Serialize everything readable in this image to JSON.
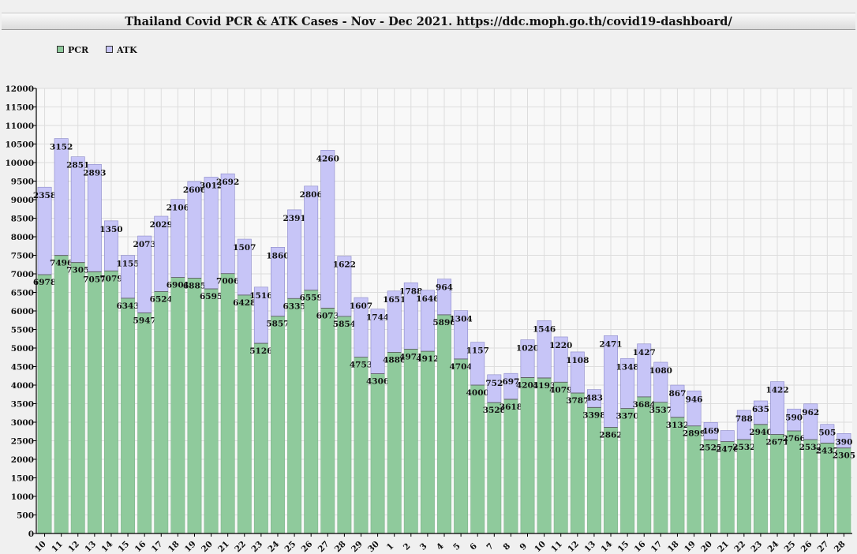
{
  "title": "Thailand Covid PCR & ATK Cases - Nov - Dec 2021. https://ddc.moph.go.th/covid19-dashboard/",
  "colors": {
    "pcr": "#8fca9c",
    "atk": "#c7c5f7",
    "plot_bg": "#f8f8f8",
    "grid": "#dddddd",
    "axis": "#000000"
  },
  "chart_data": {
    "type": "bar",
    "stacked": true,
    "title": "Thailand Covid PCR & ATK Cases - Nov - Dec 2021. https://ddc.moph.go.th/covid19-dashboard/",
    "xlabel": "",
    "ylabel": "",
    "ylim": [
      0,
      12000
    ],
    "ytick_step": 500,
    "grid": true,
    "legend_position": "top-left",
    "categories": [
      "10",
      "11",
      "12",
      "13",
      "14",
      "15",
      "16",
      "17",
      "18",
      "19",
      "20",
      "21",
      "22",
      "23",
      "24",
      "25",
      "26",
      "27",
      "28",
      "29",
      "30",
      "1",
      "2",
      "3",
      "4",
      "5",
      "6",
      "7",
      "8",
      "9",
      "10",
      "11",
      "12",
      "13",
      "14",
      "15",
      "16",
      "17",
      "18",
      "19",
      "20",
      "21",
      "22",
      "23",
      "24",
      "25",
      "26",
      "27",
      "28"
    ],
    "series": [
      {
        "name": "PCR",
        "values": [
          6978,
          7496,
          7305,
          7057,
          7079,
          6343,
          5947,
          6524,
          6901,
          6885,
          6595,
          7006,
          6428,
          5126,
          5857,
          6335,
          6559,
          6073,
          5854,
          4753,
          4306,
          4886,
          4971,
          4912,
          5896,
          4704,
          4000,
          3528,
          3618,
          4203,
          4193,
          4079,
          3787,
          3398,
          2862,
          3370,
          3684,
          3537,
          3132,
          2899,
          2525,
          2476,
          2532,
          2940,
          2671,
          2766,
          2532,
          2437,
          2305
        ],
        "labels": [
          "6978",
          "7496",
          "7305",
          "7057",
          "7079",
          "6343",
          "5947",
          "6524",
          "6901",
          "6885",
          "6595",
          "7006",
          "6428",
          "5126",
          "5857",
          "6335",
          "6559",
          "6073",
          "5854",
          "4753",
          "4306",
          "4886",
          "4971",
          "4912",
          "5896",
          "4704",
          "4000",
          "3528",
          "3618",
          "4203",
          "4193",
          "4079",
          "3787",
          "3398",
          "2862",
          "3370",
          "3684",
          "3537",
          "3132",
          "2899",
          "2525",
          "2476",
          "2532",
          "2940",
          "2671",
          "2766",
          "2532",
          "2437",
          "2305"
        ]
      },
      {
        "name": "ATK",
        "values": [
          2358,
          3152,
          2851,
          2893,
          1350,
          1155,
          2073,
          2029,
          2106,
          2606,
          3012,
          2692,
          1507,
          1516,
          1860,
          2391,
          2806,
          4260,
          1622,
          1607,
          1744,
          1651,
          1788,
          1646,
          964,
          1304,
          1157,
          752,
          697,
          1020,
          1546,
          1220,
          1108,
          483,
          2471,
          1348,
          1427,
          1080,
          867,
          946,
          469,
          300,
          788,
          635,
          1422,
          590,
          962,
          505,
          390
        ],
        "labels": [
          "2358",
          "3152",
          "2851",
          "2893",
          "1350",
          "1155",
          "2073",
          "2029",
          "2106",
          "2606",
          "3012",
          "2692",
          "1507",
          "1516",
          "1860",
          "2391",
          "2806",
          "4260",
          "1622",
          "1607",
          "1744",
          "1651",
          "1788",
          "1646",
          "964",
          "1304",
          "1157",
          "752",
          "697",
          "1020",
          "1546",
          "1220",
          "1108",
          "483",
          "2471",
          "1348",
          "1427",
          "1080",
          "867",
          "946",
          "469",
          "",
          "788",
          "635",
          "1422",
          "590",
          "962",
          "505",
          "390"
        ]
      }
    ]
  }
}
